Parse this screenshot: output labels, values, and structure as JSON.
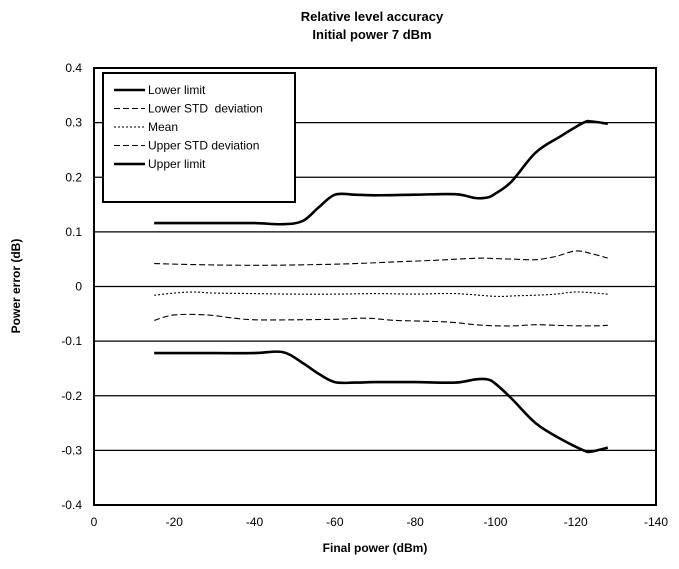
{
  "chart_data": {
    "type": "line",
    "title": "Relative level accuracy",
    "subtitle": "Initial power 7 dBm",
    "xlabel": "Final power (dBm)",
    "ylabel": "Power error (dB)",
    "xlim": [
      0,
      -140
    ],
    "ylim": [
      -0.4,
      0.4
    ],
    "x_ticks": [
      0,
      -20,
      -40,
      -60,
      -80,
      -100,
      -120,
      -140
    ],
    "y_ticks": [
      0.4,
      0.3,
      0.2,
      0.1,
      0,
      -0.1,
      -0.2,
      -0.3,
      -0.4
    ],
    "x_tick_labels": [
      "0",
      "-20",
      "-40",
      "-60",
      "-80",
      "-100",
      "-120",
      "-140"
    ],
    "y_tick_labels": [
      "0.4",
      "0.3",
      "0.2",
      "0.1",
      "0",
      "-0.1",
      "-0.2",
      "-0.3",
      "-0.4"
    ],
    "grid": "horizontal",
    "legend_position": "top-left",
    "series": [
      {
        "name": "Lower limit",
        "style": "solid-thick",
        "x": [
          -15,
          -20,
          -30,
          -40,
          -47,
          -52,
          -56,
          -60,
          -65,
          -70,
          -80,
          -90,
          -95,
          -98,
          -100,
          -104,
          -110,
          -116,
          -122,
          -124,
          -128
        ],
        "y": [
          -0.122,
          -0.122,
          -0.122,
          -0.122,
          -0.12,
          -0.14,
          -0.16,
          -0.175,
          -0.176,
          -0.175,
          -0.175,
          -0.176,
          -0.17,
          -0.17,
          -0.178,
          -0.205,
          -0.25,
          -0.278,
          -0.3,
          -0.302,
          -0.295
        ]
      },
      {
        "name": "Lower STD  deviation",
        "style": "dashed",
        "x": [
          -15,
          -20,
          -28,
          -35,
          -40,
          -50,
          -60,
          -68,
          -75,
          -85,
          -90,
          -95,
          -100,
          -105,
          -110,
          -115,
          -120,
          -125,
          -128
        ],
        "y": [
          -0.062,
          -0.052,
          -0.052,
          -0.058,
          -0.061,
          -0.061,
          -0.06,
          -0.058,
          -0.062,
          -0.064,
          -0.066,
          -0.07,
          -0.072,
          -0.072,
          -0.07,
          -0.071,
          -0.072,
          -0.072,
          -0.071
        ]
      },
      {
        "name": "Mean",
        "style": "dotted",
        "x": [
          -15,
          -20,
          -25,
          -30,
          -40,
          -50,
          -60,
          -70,
          -80,
          -90,
          -100,
          -105,
          -110,
          -115,
          -120,
          -125,
          -128
        ],
        "y": [
          -0.016,
          -0.012,
          -0.01,
          -0.012,
          -0.013,
          -0.014,
          -0.014,
          -0.013,
          -0.014,
          -0.013,
          -0.018,
          -0.017,
          -0.016,
          -0.014,
          -0.01,
          -0.012,
          -0.014
        ]
      },
      {
        "name": "Upper STD deviation",
        "style": "dashed",
        "x": [
          -15,
          -25,
          -35,
          -45,
          -55,
          -65,
          -75,
          -85,
          -90,
          -97,
          -100,
          -105,
          -110,
          -115,
          -120,
          -124,
          -128
        ],
        "y": [
          0.042,
          0.04,
          0.039,
          0.039,
          0.04,
          0.042,
          0.045,
          0.048,
          0.05,
          0.052,
          0.051,
          0.05,
          0.049,
          0.055,
          0.065,
          0.06,
          0.052
        ]
      },
      {
        "name": "Upper limit",
        "style": "solid-thick",
        "x": [
          -15,
          -20,
          -30,
          -40,
          -47,
          -52,
          -56,
          -60,
          -65,
          -70,
          -80,
          -90,
          -95,
          -98,
          -100,
          -104,
          -110,
          -116,
          -122,
          -124,
          -128
        ],
        "y": [
          0.116,
          0.116,
          0.116,
          0.116,
          0.114,
          0.12,
          0.145,
          0.168,
          0.168,
          0.167,
          0.168,
          0.169,
          0.162,
          0.163,
          0.17,
          0.192,
          0.245,
          0.274,
          0.3,
          0.302,
          0.298
        ]
      }
    ]
  }
}
